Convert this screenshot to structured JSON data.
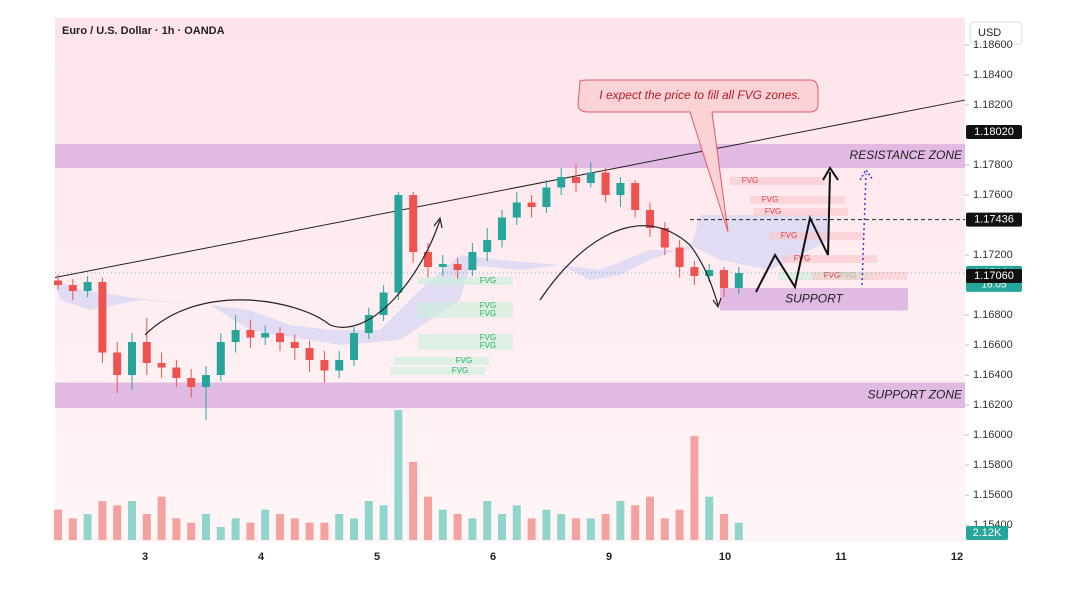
{
  "chart_data": {
    "type": "candlestick",
    "title": "Euro / U.S. Dollar · 1h · OANDA",
    "currency": "USD",
    "ylim": [
      1.15287,
      1.1878
    ],
    "yticks": [
      {
        "value": 1.186,
        "label": "1.18600"
      },
      {
        "value": 1.184,
        "label": "1.18400"
      },
      {
        "value": 1.182,
        "label": "1.18200"
      },
      {
        "value": 1.178,
        "label": "1.17800"
      },
      {
        "value": 1.176,
        "label": "1.17600"
      },
      {
        "value": 1.172,
        "label": "1.17200"
      },
      {
        "value": 1.168,
        "label": "1.16800"
      },
      {
        "value": 1.166,
        "label": "1.16600"
      },
      {
        "value": 1.164,
        "label": "1.16400"
      },
      {
        "value": 1.162,
        "label": "1.16200"
      },
      {
        "value": 1.16,
        "label": "1.16000"
      },
      {
        "value": 1.158,
        "label": "1.15800"
      },
      {
        "value": 1.156,
        "label": "1.15600"
      },
      {
        "value": 1.154,
        "label": "1.15400"
      }
    ],
    "x_labels": [
      "3",
      "4",
      "5",
      "6",
      "9",
      "10",
      "11",
      "12"
    ],
    "up_color": "#26a69a",
    "down_color": "#ef5350",
    "candles": [
      [
        1.1703,
        1.1707,
        1.1697,
        1.17
      ],
      [
        1.17,
        1.1704,
        1.169,
        1.1696
      ],
      [
        1.1696,
        1.1706,
        1.1692,
        1.1702
      ],
      [
        1.1702,
        1.1705,
        1.1648,
        1.1655
      ],
      [
        1.1655,
        1.1662,
        1.1628,
        1.164
      ],
      [
        1.164,
        1.1668,
        1.163,
        1.1662
      ],
      [
        1.1662,
        1.1678,
        1.164,
        1.1648
      ],
      [
        1.1648,
        1.1655,
        1.1638,
        1.1645
      ],
      [
        1.1645,
        1.165,
        1.1632,
        1.1638
      ],
      [
        1.1638,
        1.1644,
        1.1625,
        1.1632
      ],
      [
        1.1632,
        1.1646,
        1.161,
        1.164
      ],
      [
        1.164,
        1.1668,
        1.1636,
        1.1662
      ],
      [
        1.1662,
        1.168,
        1.1655,
        1.167
      ],
      [
        1.167,
        1.1677,
        1.1658,
        1.1665
      ],
      [
        1.1665,
        1.1673,
        1.166,
        1.1668
      ],
      [
        1.1668,
        1.1672,
        1.1656,
        1.1662
      ],
      [
        1.1662,
        1.1667,
        1.165,
        1.1658
      ],
      [
        1.1658,
        1.1663,
        1.1642,
        1.165
      ],
      [
        1.165,
        1.1656,
        1.1635,
        1.1643
      ],
      [
        1.1643,
        1.1656,
        1.1638,
        1.165
      ],
      [
        1.165,
        1.1672,
        1.1646,
        1.1668
      ],
      [
        1.1668,
        1.1685,
        1.1664,
        1.168
      ],
      [
        1.168,
        1.17,
        1.1676,
        1.1695
      ],
      [
        1.1695,
        1.1762,
        1.169,
        1.176
      ],
      [
        1.176,
        1.1762,
        1.1715,
        1.1722
      ],
      [
        1.1722,
        1.1728,
        1.1705,
        1.1712
      ],
      [
        1.1712,
        1.172,
        1.1706,
        1.1714
      ],
      [
        1.1714,
        1.1718,
        1.1704,
        1.171
      ],
      [
        1.171,
        1.1728,
        1.1706,
        1.1722
      ],
      [
        1.1722,
        1.1738,
        1.1716,
        1.173
      ],
      [
        1.173,
        1.175,
        1.1725,
        1.1745
      ],
      [
        1.1745,
        1.1762,
        1.174,
        1.1755
      ],
      [
        1.1755,
        1.176,
        1.1745,
        1.1752
      ],
      [
        1.1752,
        1.177,
        1.1748,
        1.1765
      ],
      [
        1.1765,
        1.1778,
        1.176,
        1.1772
      ],
      [
        1.1772,
        1.178,
        1.1762,
        1.1768
      ],
      [
        1.1768,
        1.1782,
        1.1765,
        1.1775
      ],
      [
        1.1775,
        1.1778,
        1.1755,
        1.176
      ],
      [
        1.176,
        1.1772,
        1.1752,
        1.1768
      ],
      [
        1.1768,
        1.177,
        1.1745,
        1.175
      ],
      [
        1.175,
        1.1755,
        1.1732,
        1.1738
      ],
      [
        1.1738,
        1.1742,
        1.172,
        1.1725
      ],
      [
        1.1725,
        1.173,
        1.1705,
        1.1712
      ],
      [
        1.1712,
        1.1716,
        1.17,
        1.1706
      ],
      [
        1.1706,
        1.1714,
        1.1702,
        1.171
      ],
      [
        1.171,
        1.1712,
        1.1692,
        1.1698
      ],
      [
        1.1698,
        1.1712,
        1.1694,
        1.1708
      ]
    ],
    "volume": [
      7,
      5,
      6,
      9,
      8,
      9,
      6,
      10,
      5,
      4,
      6,
      3,
      5,
      4,
      7,
      6,
      5,
      4,
      4,
      6,
      5,
      9,
      8,
      30,
      18,
      10,
      7,
      6,
      5,
      9,
      6,
      8,
      5,
      7,
      6,
      5,
      5,
      6,
      9,
      8,
      10,
      5,
      7,
      24,
      10,
      6,
      4
    ],
    "volume_lim": [
      0,
      30
    ],
    "volume_label": "2.12K",
    "price_labels": [
      {
        "value": 1.1802,
        "label": "1.18020"
      },
      {
        "value": 1.17436,
        "label": "1.17436"
      },
      {
        "value": 1.17081,
        "label": "1.17081",
        "countdown": "16:05"
      },
      {
        "value": 1.1706,
        "label": "1.17060"
      }
    ],
    "zones": [
      {
        "label": "RESISTANCE ZONE",
        "low": 1.1778,
        "high": 1.1794
      },
      {
        "label": "SUPPORT ZONE",
        "low": 1.1618,
        "high": 1.1635
      },
      {
        "label": "SUPPORT",
        "low": 1.1683,
        "high": 1.1698
      }
    ],
    "trendline": [
      1.1705,
      1.18233
    ],
    "fvg_labels": [
      "FVG",
      "FVG",
      "FVG",
      "FVG",
      "FVG",
      "FVG",
      "FVG",
      "FVG",
      "FVG",
      "FVG",
      "FVG",
      "FVG",
      "FVG",
      "FVG"
    ],
    "annotation": "I expect the price to fill all FVG zones."
  }
}
